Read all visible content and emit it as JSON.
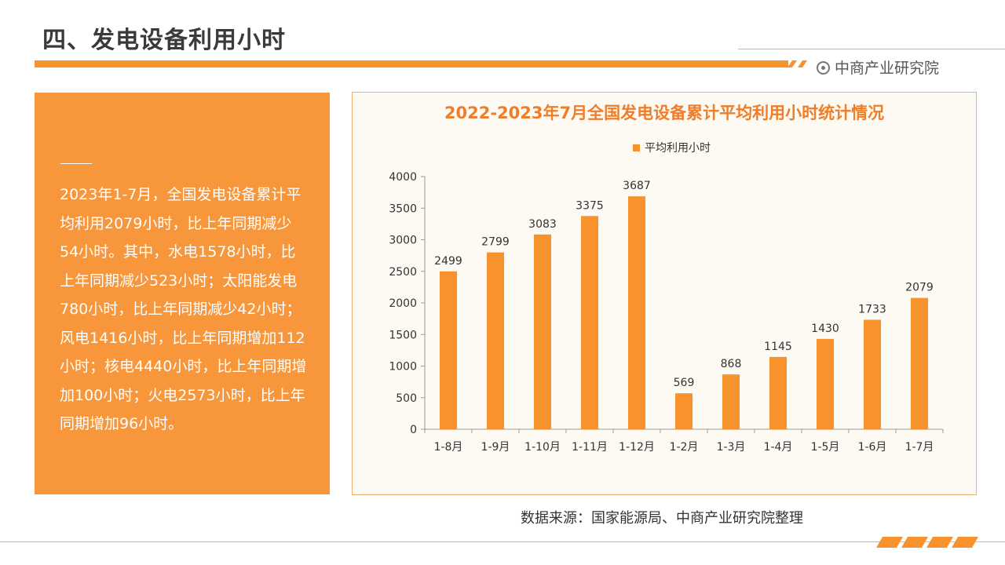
{
  "header": {
    "title": "四、发电设备利用小时",
    "brand": "中商产业研究院"
  },
  "sidebar": {
    "paragraph": "2023年1-7月，全国发电设备累计平均利用2079小时，比上年同期减少54小时。其中，水电1578小时，比上年同期减少523小时；太阳能发电780小时，比上年同期减少42小时；风电1416小时，比上年同期增加112小时；核电4440小时，比上年同期增加100小时；火电2573小时，比上年同期增加96小时。"
  },
  "source": "数据来源：国家能源局、中商产业研究院整理",
  "colors": {
    "accent": "#f7922c",
    "title": "#f07d28",
    "panel": "#f7963a"
  },
  "chart_data": {
    "type": "bar",
    "title": "2022-2023年7月全国发电设备累计平均利用小时统计情况",
    "categories": [
      "1-8月",
      "1-9月",
      "1-10月",
      "1-11月",
      "1-12月",
      "1-2月",
      "1-3月",
      "1-4月",
      "1-5月",
      "1-6月",
      "1-7月"
    ],
    "series": [
      {
        "name": "平均利用小时",
        "values": [
          2499,
          2799,
          3083,
          3375,
          3687,
          569,
          868,
          1145,
          1430,
          1733,
          2079
        ]
      }
    ],
    "ylim": [
      0,
      4000
    ],
    "yticks": [
      0,
      500,
      1000,
      1500,
      2000,
      2500,
      3000,
      3500,
      4000
    ],
    "legend": "top-center",
    "grid": false
  }
}
